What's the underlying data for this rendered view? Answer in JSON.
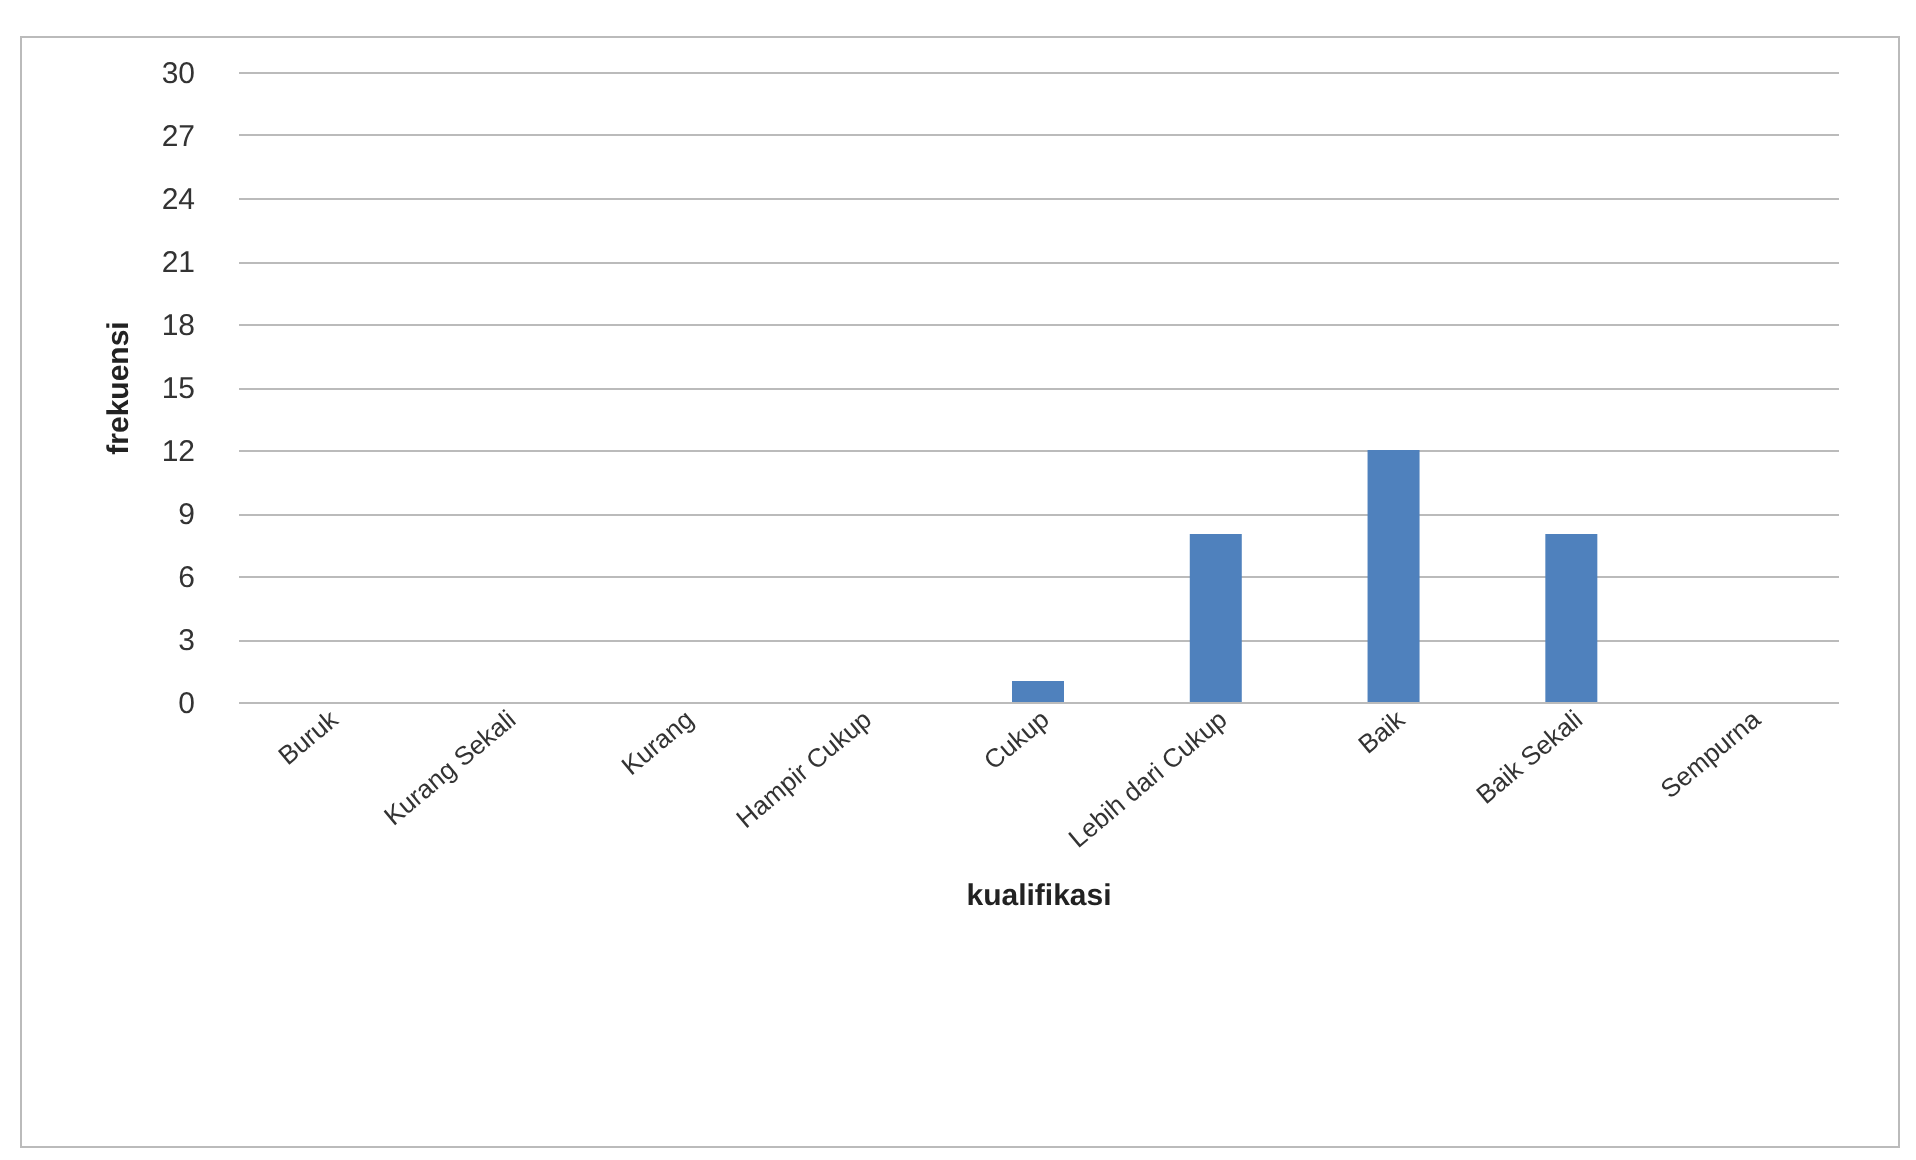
{
  "chart_data": {
    "type": "bar",
    "xlabel": "kualifikasi",
    "ylabel": "frekuensi",
    "categories": [
      "Buruk",
      "Kurang Sekali",
      "Kurang",
      "Hampir Cukup",
      "Cukup",
      "Lebih dari Cukup",
      "Baik",
      "Baik Sekali",
      "Sempurna"
    ],
    "values": [
      0,
      0,
      0,
      0,
      1,
      8,
      12,
      8,
      0
    ],
    "color": "#4f81bd",
    "ylim": [
      0,
      30
    ],
    "yticks": [
      0,
      3,
      6,
      9,
      12,
      15,
      18,
      21,
      24,
      27,
      30
    ],
    "grid": "y"
  }
}
